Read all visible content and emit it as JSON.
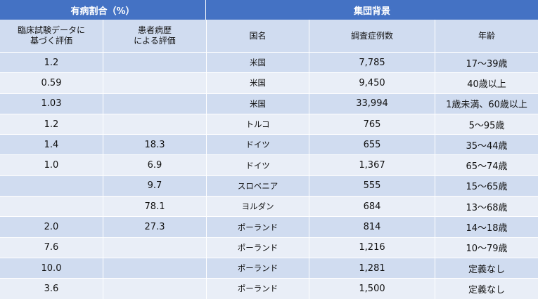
{
  "header": {
    "prevalence_group": "有病割合（%）",
    "background_group": "集団背景",
    "columns": [
      "臨床試験データに\n基づく評価",
      "患者病歴\nによる評価",
      "国名",
      "調査症例数",
      "年齢"
    ]
  },
  "rows": [
    {
      "clinical": "1.2",
      "history": "",
      "country": "米国",
      "cases": "7,785",
      "age": "17～39歳"
    },
    {
      "clinical": "0.59",
      "history": "",
      "country": "米国",
      "cases": "9,450",
      "age": "40歳以上"
    },
    {
      "clinical": "1.03",
      "history": "",
      "country": "米国",
      "cases": "33,994",
      "age": "1歳未満、60歳以上"
    },
    {
      "clinical": "1.2",
      "history": "",
      "country": "トルコ",
      "cases": "765",
      "age": "5～95歳"
    },
    {
      "clinical": "1.4",
      "history": "18.3",
      "country": "ドイツ",
      "cases": "655",
      "age": "35～44歳"
    },
    {
      "clinical": "1.0",
      "history": "6.9",
      "country": "ドイツ",
      "cases": "1,367",
      "age": "65～74歳"
    },
    {
      "clinical": "",
      "history": "9.7",
      "country": "スロベニア",
      "cases": "555",
      "age": "15～65歳"
    },
    {
      "clinical": "",
      "history": "78.1",
      "country": "ヨルダン",
      "cases": "684",
      "age": "13～68歳"
    },
    {
      "clinical": "2.0",
      "history": "27.3",
      "country": "ポーランド",
      "cases": "814",
      "age": "14～18歳"
    },
    {
      "clinical": "7.6",
      "history": "",
      "country": "ポーランド",
      "cases": "1,216",
      "age": "10～79歳"
    },
    {
      "clinical": "10.0",
      "history": "",
      "country": "ポーランド",
      "cases": "1,281",
      "age": "定義なし"
    },
    {
      "clinical": "3.6",
      "history": "",
      "country": "ポーランド",
      "cases": "1,500",
      "age": "定義なし"
    }
  ],
  "colors": {
    "header_blue": "#4472c4",
    "row_dark": "#d0dcf0",
    "row_light": "#e9eef7"
  }
}
